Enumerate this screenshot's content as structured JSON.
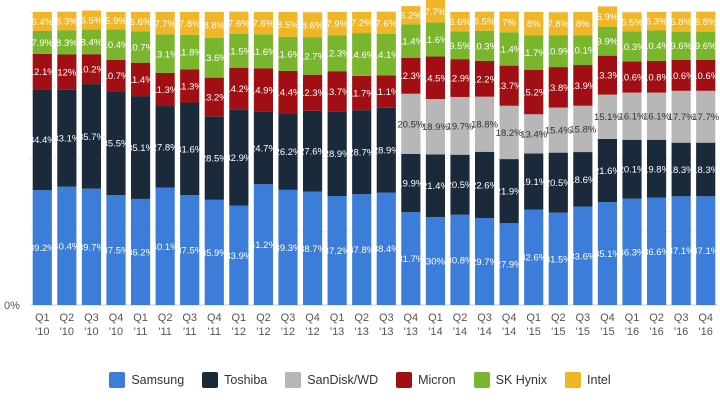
{
  "chart_data": {
    "type": "bar",
    "stacked": true,
    "ylim": [
      0,
      100
    ],
    "y_tick_labels": [
      "0%"
    ],
    "grid": true,
    "legend_position": "bottom",
    "categories": [
      [
        "Q1",
        "'10"
      ],
      [
        "Q2",
        "'10"
      ],
      [
        "Q3",
        "'10"
      ],
      [
        "Q4",
        "'10"
      ],
      [
        "Q1",
        "'11"
      ],
      [
        "Q2",
        "'11"
      ],
      [
        "Q3",
        "'11"
      ],
      [
        "Q4",
        "'11"
      ],
      [
        "Q1",
        "'12"
      ],
      [
        "Q2",
        "'12"
      ],
      [
        "Q3",
        "'12"
      ],
      [
        "Q4",
        "'12"
      ],
      [
        "Q1",
        "'13"
      ],
      [
        "Q2",
        "'13"
      ],
      [
        "Q3",
        "'13"
      ],
      [
        "Q4",
        "'13"
      ],
      [
        "Q1",
        "'14"
      ],
      [
        "Q2",
        "'14"
      ],
      [
        "Q3",
        "'14"
      ],
      [
        "Q4",
        "'14"
      ],
      [
        "Q1",
        "'15"
      ],
      [
        "Q2",
        "'15"
      ],
      [
        "Q3",
        "'15"
      ],
      [
        "Q4",
        "'15"
      ],
      [
        "Q1",
        "'16"
      ],
      [
        "Q2",
        "'16"
      ],
      [
        "Q3",
        "'16"
      ],
      [
        "Q4",
        "'16"
      ]
    ],
    "series": [
      {
        "name": "Samsung",
        "color": "#3b7dd8",
        "values": [
          39.2,
          40.4,
          39.7,
          37.5,
          36.2,
          40.1,
          37.5,
          35.9,
          33.9,
          41.2,
          39.3,
          38.7,
          37.2,
          37.8,
          38.4,
          31.7,
          30,
          30.8,
          29.7,
          27.9,
          32.6,
          31.5,
          33.6,
          35.1,
          36.3,
          36.6,
          37.1,
          37.1
        ]
      },
      {
        "name": "Toshiba",
        "color": "#1a2a3a",
        "values": [
          34.4,
          33.1,
          35.7,
          35.5,
          35.1,
          27.8,
          31.6,
          28.5,
          32.9,
          24.7,
          26.2,
          27.6,
          28.9,
          28.7,
          28.9,
          19.9,
          21.4,
          20.5,
          22.6,
          21.9,
          19.1,
          20.5,
          18.6,
          21.6,
          20.1,
          19.8,
          18.3,
          18.3
        ]
      },
      {
        "name": "SanDisk/WD",
        "color": "#b7b7b7",
        "values": [
          0,
          0,
          0,
          0,
          0,
          0,
          0,
          0,
          0,
          0,
          0,
          0,
          0,
          0,
          0,
          20.5,
          18.9,
          19.7,
          18.8,
          18.2,
          13.4,
          15.4,
          15.8,
          15.1,
          16.1,
          16.1,
          17.7,
          17.7
        ]
      },
      {
        "name": "Micron",
        "color": "#a10f14",
        "values": [
          12.1,
          12,
          10.2,
          10.7,
          11.4,
          11.3,
          11.3,
          13.2,
          14.2,
          14.9,
          14.4,
          12.3,
          13.7,
          11.7,
          11.1,
          12.3,
          14.5,
          12.9,
          12.2,
          13.7,
          15.2,
          13.8,
          13.9,
          13.3,
          10.6,
          10.8,
          10.6,
          10.6
        ]
      },
      {
        "name": "SK Hynix",
        "color": "#7ab52e",
        "values": [
          7.9,
          8.3,
          8.4,
          10.4,
          10.7,
          13.1,
          11.8,
          13.6,
          11.5,
          11.6,
          11.6,
          12.7,
          12.3,
          14.6,
          14.1,
          11.4,
          11.6,
          9.5,
          10.3,
          11.4,
          11.7,
          10.9,
          10.1,
          9.9,
          10.3,
          10.4,
          9.6,
          9.6
        ]
      },
      {
        "name": "Intel",
        "color": "#f1b528",
        "values": [
          6.4,
          6.3,
          6.5,
          5.9,
          6.6,
          7.7,
          7.8,
          8.8,
          7.6,
          7.6,
          8.5,
          8.6,
          7.9,
          7.2,
          7.6,
          6.2,
          7.7,
          6.6,
          6.5,
          7,
          8,
          7.8,
          8,
          6.9,
          6.5,
          6.3,
          6.8,
          6.8
        ]
      }
    ],
    "segment_labels": [
      [
        "39.2%",
        "34.4%",
        "",
        "12.1%",
        "7.9%",
        "6.4%"
      ],
      [
        "40.4%",
        "33.1%",
        "",
        "12%",
        "8.3%",
        "6.3%"
      ],
      [
        "39.7%",
        "35.7%",
        "",
        "10.2%",
        "8.4%",
        "6.5%"
      ],
      [
        "37.5%",
        "35.5%",
        "",
        "10.7%",
        "10.4%",
        "5.9%"
      ],
      [
        "36.2%",
        "35.1%",
        "",
        "11.4%",
        "10.7%",
        "6.6%"
      ],
      [
        "40.1%",
        "27.8%",
        "",
        "11.3%",
        "13.1%",
        "7.7%"
      ],
      [
        "37.5%",
        "31.6%",
        "",
        "11.3%",
        "11.8%",
        "7.8%"
      ],
      [
        "35.9%",
        "28.5%",
        "",
        "13.2%",
        "13.6%",
        "8.8%"
      ],
      [
        "33.9%",
        "32.9%",
        "",
        "14.2%",
        "11.5%",
        "7.6%"
      ],
      [
        "41.2%",
        "24.7%",
        "",
        "14.9%",
        "11.6%",
        "7.6%"
      ],
      [
        "39.3%",
        "26.2%",
        "",
        "14.4%",
        "11.6%",
        "8.5%"
      ],
      [
        "38.7%",
        "27.6%",
        "",
        "12.3%",
        "12.7%",
        "8.6%"
      ],
      [
        "37.2%",
        "28.9%",
        "",
        "13.7%",
        "12.3%",
        "7.9%"
      ],
      [
        "37.8%",
        "28.7%",
        "",
        "11.7%",
        "14.6%",
        "7.2%"
      ],
      [
        "38.4%",
        "28.9%",
        "",
        "11.1%",
        "14.1%",
        "7.6%"
      ],
      [
        "31.7%",
        "19.9%",
        "20.5%",
        "12.3%",
        "11.4%",
        "6.2%"
      ],
      [
        "30%",
        "21.4%",
        "18.9%",
        "14.5%",
        "11.6%",
        "7.7%"
      ],
      [
        "30.8%",
        "20.5%",
        "19.7%",
        "12.9%",
        "9.5%",
        "6.6%"
      ],
      [
        "29.7%",
        "22.6%",
        "18.8%",
        "12.2%",
        "10.3%",
        "6.5%"
      ],
      [
        "27.9%",
        "21.9%",
        "18.2%",
        "13.7%",
        "11.4%",
        "7%"
      ],
      [
        "32.6%",
        "19.1%",
        "13.4%",
        "15.2%",
        "11.7%",
        "8%"
      ],
      [
        "31.5%",
        "20.5%",
        "15.4%",
        "13.8%",
        "10.9%",
        "7.8%"
      ],
      [
        "33.6%",
        "18.6%",
        "15.8%",
        "13.9%",
        "10.1%",
        "8%"
      ],
      [
        "35.1%",
        "21.6%",
        "15.1%",
        "13.3%",
        "9.9%",
        "6.9%"
      ],
      [
        "36.3%",
        "20.1%",
        "16.1%",
        "10.6%",
        "10.3%",
        "6.5%"
      ],
      [
        "36.6%",
        "19.8%",
        "16.1%",
        "10.8%",
        "10.4%",
        "6.3%"
      ],
      [
        "37.1%",
        "18.3%",
        "17.7%",
        "10.6%",
        "9.6%",
        "6.8%"
      ],
      [
        "37.1%",
        "18.3%",
        "17.7%",
        "10.6%",
        "9.6%",
        "6.8%"
      ]
    ]
  }
}
